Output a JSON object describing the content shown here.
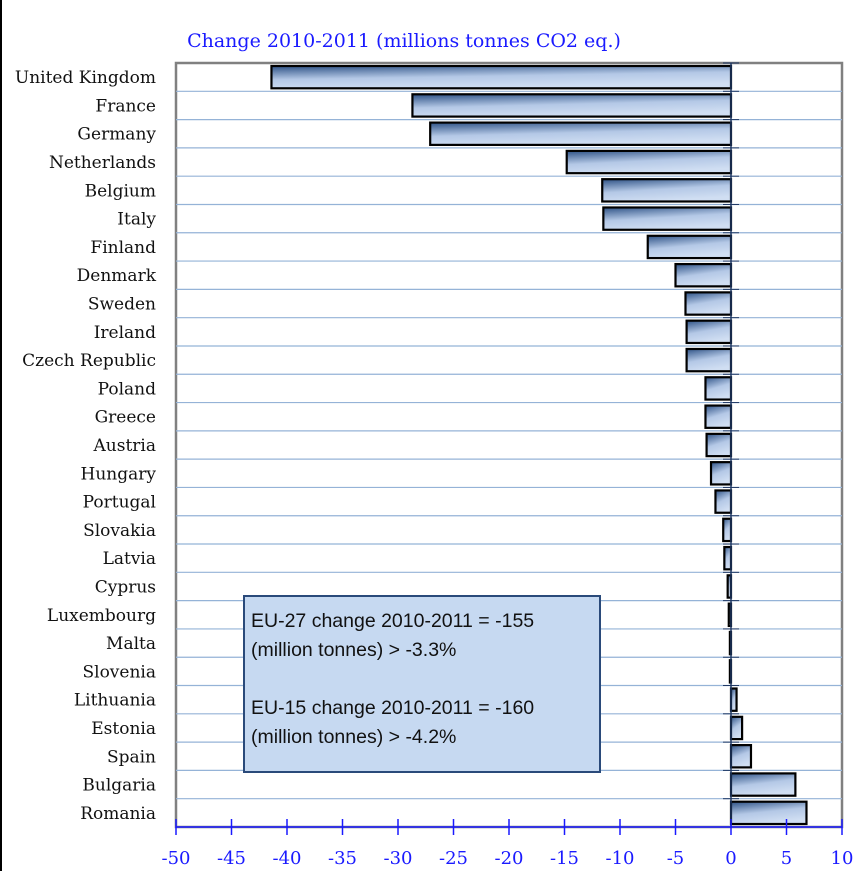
{
  "chart_data": {
    "type": "bar",
    "orientation": "horizontal",
    "title": "Change 2010-2011 (millions tonnes CO2 eq.)",
    "xlabel": "",
    "ylabel": "",
    "xlim": [
      -50,
      10
    ],
    "xticks": [
      -50,
      -45,
      -40,
      -35,
      -30,
      -25,
      -20,
      -15,
      -10,
      -5,
      0,
      5,
      10
    ],
    "xtick_labels": [
      "-50",
      "-45",
      "-40",
      "-35",
      "-30",
      "-25",
      "-20",
      "-15",
      "-10",
      "-5",
      "0",
      "5",
      "10"
    ],
    "grid": "horizontal category separators",
    "legend": "none",
    "categories": [
      "United Kingdom",
      "France",
      "Germany",
      "Netherlands",
      "Belgium",
      "Italy",
      "Finland",
      "Denmark",
      "Sweden",
      "Ireland",
      "Czech Republic",
      "Poland",
      "Greece",
      "Austria",
      "Hungary",
      "Portugal",
      "Slovakia",
      "Latvia",
      "Cyprus",
      "Luxembourg",
      "Malta",
      "Slovenia",
      "Lithuania",
      "Estonia",
      "Spain",
      "Bulgaria",
      "Romania"
    ],
    "values": [
      -41.4,
      -28.7,
      -27.1,
      -14.8,
      -11.6,
      -11.5,
      -7.5,
      -5.0,
      -4.1,
      -4.0,
      -4.0,
      -2.3,
      -2.3,
      -2.2,
      -1.8,
      -1.4,
      -0.7,
      -0.6,
      -0.3,
      -0.2,
      -0.1,
      -0.1,
      0.5,
      1.0,
      1.8,
      5.8,
      6.8
    ],
    "annotation": {
      "lines": [
        "EU-27 change 2010-2011 = -155",
        "(million tonnes) > -3.3%",
        "EU-15 change 2010-2011 = -160",
        "(million tonnes) > -4.2%"
      ]
    },
    "colors": {
      "bar_dark": "#2e5286",
      "bar_light": "#c9d8ee",
      "bar_outline": "#000000",
      "gridline": "#95b3d7",
      "plot_border": "#808080",
      "axis": "#1a1aff",
      "zero_line": "#1f3864",
      "annotation_fill": "#c6d9f1"
    }
  }
}
